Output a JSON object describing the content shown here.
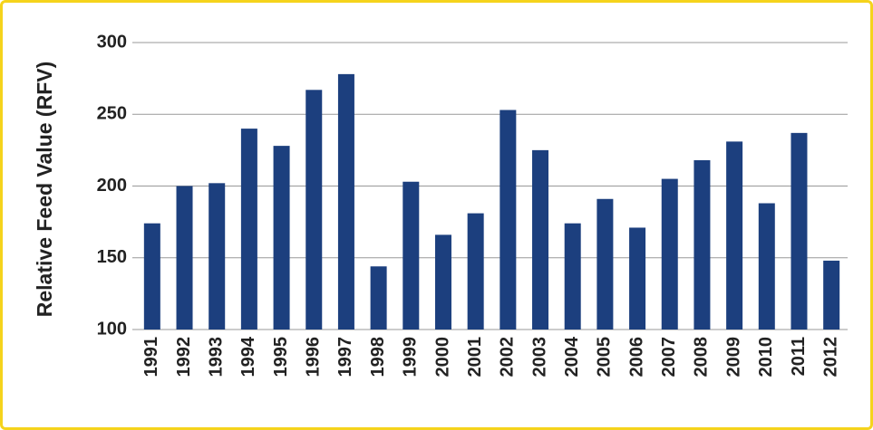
{
  "chart_data": {
    "type": "bar",
    "y_label": "Relative Feed Value (RFV)",
    "categories": [
      "1991",
      "1992",
      "1993",
      "1994",
      "1995",
      "1996",
      "1997",
      "1998",
      "1999",
      "2000",
      "2001",
      "2002",
      "2003",
      "2004",
      "2005",
      "2006",
      "2007",
      "2008",
      "2009",
      "2010",
      "2011",
      "2012"
    ],
    "values": [
      174,
      200,
      202,
      240,
      228,
      267,
      278,
      144,
      203,
      166,
      181,
      253,
      225,
      174,
      191,
      171,
      205,
      218,
      231,
      188,
      237,
      148
    ],
    "color": "#1c3f7e",
    "ylim": [
      100,
      300
    ],
    "yticks": [
      100,
      150,
      200,
      250,
      300
    ],
    "grid": true
  }
}
